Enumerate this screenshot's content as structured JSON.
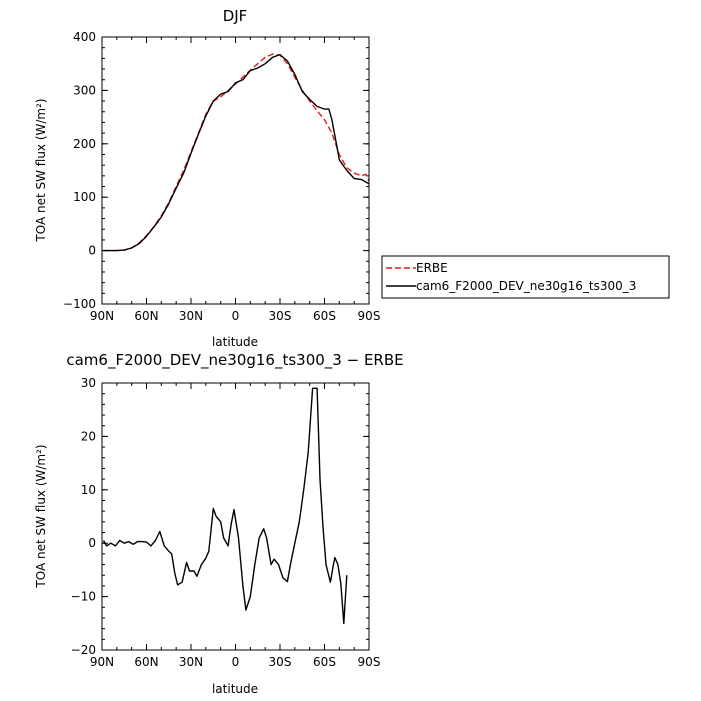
{
  "chart_data": [
    {
      "type": "line",
      "title": "DJF",
      "xlabel": "latitude",
      "ylabel": "TOA net SW flux (W/m²)",
      "xlim": [
        -90,
        90
      ],
      "ylim": [
        -100,
        400
      ],
      "x_ticks": [
        {
          "value": -90,
          "label": "90N"
        },
        {
          "value": -60,
          "label": "60N"
        },
        {
          "value": -30,
          "label": "30N"
        },
        {
          "value": 0,
          "label": "0"
        },
        {
          "value": 30,
          "label": "30S"
        },
        {
          "value": 60,
          "label": "60S"
        },
        {
          "value": 90,
          "label": "90S"
        }
      ],
      "y_ticks": [
        -100,
        0,
        100,
        200,
        300,
        400
      ],
      "legend_position": "right",
      "series": [
        {
          "name": "ERBE",
          "color": "#e41a1c",
          "dash": "dashed",
          "points": [
            [
              -89,
              0
            ],
            [
              -85,
              0
            ],
            [
              -80,
              0
            ],
            [
              -75,
              1
            ],
            [
              -70,
              5
            ],
            [
              -65,
              14
            ],
            [
              -60,
              28
            ],
            [
              -55,
              45
            ],
            [
              -50,
              65
            ],
            [
              -45,
              90
            ],
            [
              -40,
              120
            ],
            [
              -35,
              150
            ],
            [
              -30,
              185
            ],
            [
              -25,
              220
            ],
            [
              -20,
              255
            ],
            [
              -15,
              280
            ],
            [
              -10,
              288
            ],
            [
              -5,
              300
            ],
            [
              0,
              312
            ],
            [
              5,
              325
            ],
            [
              10,
              338
            ],
            [
              15,
              350
            ],
            [
              20,
              362
            ],
            [
              25,
              368
            ],
            [
              30,
              366
            ],
            [
              35,
              350
            ],
            [
              40,
              325
            ],
            [
              45,
              300
            ],
            [
              50,
              280
            ],
            [
              55,
              262
            ],
            [
              60,
              245
            ],
            [
              65,
              220
            ],
            [
              70,
              180
            ],
            [
              75,
              155
            ],
            [
              80,
              145
            ],
            [
              85,
              140
            ],
            [
              88,
              143
            ],
            [
              90,
              130
            ]
          ]
        },
        {
          "name": "cam6_F2000_DEV_ne30g16_ts300_3",
          "color": "#000000",
          "dash": "solid",
          "points": [
            [
              -89,
              0
            ],
            [
              -85,
              0
            ],
            [
              -80,
              0
            ],
            [
              -75,
              1
            ],
            [
              -70,
              5
            ],
            [
              -65,
              13
            ],
            [
              -60,
              27
            ],
            [
              -55,
              44
            ],
            [
              -50,
              63
            ],
            [
              -45,
              88
            ],
            [
              -40,
              117
            ],
            [
              -35,
              145
            ],
            [
              -30,
              182
            ],
            [
              -25,
              218
            ],
            [
              -20,
              252
            ],
            [
              -15,
              280
            ],
            [
              -10,
              293
            ],
            [
              -5,
              298
            ],
            [
              0,
              314
            ],
            [
              5,
              320
            ],
            [
              10,
              337
            ],
            [
              15,
              342
            ],
            [
              20,
              350
            ],
            [
              25,
              362
            ],
            [
              30,
              367
            ],
            [
              35,
              355
            ],
            [
              40,
              330
            ],
            [
              45,
              298
            ],
            [
              50,
              283
            ],
            [
              55,
              270
            ],
            [
              60,
              265
            ],
            [
              63,
              265
            ],
            [
              65,
              245
            ],
            [
              68,
              200
            ],
            [
              70,
              170
            ],
            [
              75,
              150
            ],
            [
              80,
              135
            ],
            [
              85,
              133
            ],
            [
              90,
              125
            ]
          ]
        }
      ]
    },
    {
      "type": "line",
      "title": "cam6_F2000_DEV_ne30g16_ts300_3 − ERBE",
      "xlabel": "latitude",
      "ylabel": "TOA net SW flux (W/m²)",
      "xlim": [
        -90,
        90
      ],
      "ylim": [
        -20,
        30
      ],
      "x_ticks": [
        {
          "value": -90,
          "label": "90N"
        },
        {
          "value": -60,
          "label": "60N"
        },
        {
          "value": -30,
          "label": "30N"
        },
        {
          "value": 0,
          "label": "0"
        },
        {
          "value": 30,
          "label": "30S"
        },
        {
          "value": 60,
          "label": "60S"
        },
        {
          "value": 90,
          "label": "90S"
        }
      ],
      "y_ticks": [
        -20,
        -10,
        0,
        10,
        20,
        30
      ],
      "series": [
        {
          "color": "#000000",
          "dash": "solid",
          "points": [
            [
              -89,
              0.5
            ],
            [
              -87,
              -0.5
            ],
            [
              -84,
              0
            ],
            [
              -81,
              -0.5
            ],
            [
              -78,
              0.5
            ],
            [
              -75,
              0
            ],
            [
              -72,
              0.3
            ],
            [
              -69,
              -0.2
            ],
            [
              -66,
              0.3
            ],
            [
              -63,
              0.3
            ],
            [
              -60,
              0.2
            ],
            [
              -57,
              -0.5
            ],
            [
              -54,
              0.5
            ],
            [
              -51,
              2.2
            ],
            [
              -48,
              -0.5
            ],
            [
              -45,
              -1.5
            ],
            [
              -43,
              -2
            ],
            [
              -41,
              -5.5
            ],
            [
              -39,
              -7.8
            ],
            [
              -36,
              -7.3
            ],
            [
              -33,
              -3.6
            ],
            [
              -31,
              -5.2
            ],
            [
              -28,
              -5.2
            ],
            [
              -26,
              -6.2
            ],
            [
              -23,
              -4
            ],
            [
              -20,
              -2.8
            ],
            [
              -18,
              -1.5
            ],
            [
              -15,
              6.5
            ],
            [
              -13,
              5
            ],
            [
              -10,
              4
            ],
            [
              -8,
              1
            ],
            [
              -5,
              -0.5
            ],
            [
              -3,
              3.5
            ],
            [
              -1,
              6.3
            ],
            [
              2,
              1
            ],
            [
              5,
              -8
            ],
            [
              7,
              -12.5
            ],
            [
              10,
              -10
            ],
            [
              13,
              -4
            ],
            [
              16,
              1
            ],
            [
              19,
              2.7
            ],
            [
              21,
              1
            ],
            [
              24,
              -4
            ],
            [
              26,
              -3
            ],
            [
              29,
              -4
            ],
            [
              32,
              -6.5
            ],
            [
              35,
              -7.2
            ],
            [
              37,
              -4
            ],
            [
              40,
              0
            ],
            [
              43,
              4
            ],
            [
              46,
              10
            ],
            [
              49,
              17
            ],
            [
              52,
              29
            ],
            [
              55,
              29
            ],
            [
              57,
              12
            ],
            [
              59,
              3
            ],
            [
              61,
              -4
            ],
            [
              64,
              -7.3
            ],
            [
              66,
              -4
            ],
            [
              67,
              -2.7
            ],
            [
              69,
              -4
            ],
            [
              71,
              -7.5
            ],
            [
              73,
              -15
            ],
            [
              75,
              -6
            ]
          ]
        }
      ]
    }
  ]
}
